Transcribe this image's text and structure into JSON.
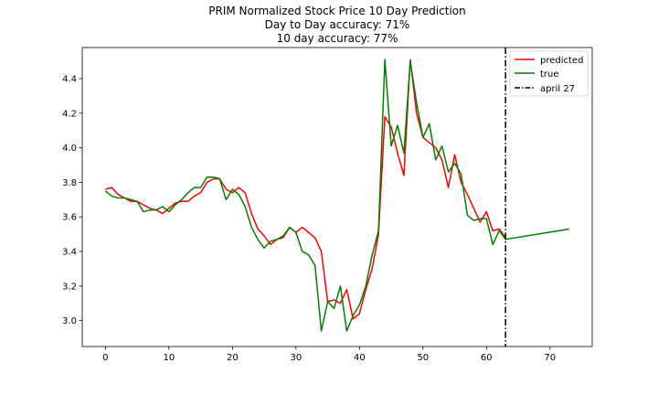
{
  "chart_data": {
    "type": "line",
    "title_lines": [
      "PRIM Normalized Stock Price 10 Day Prediction",
      "Day to Day accuracy: 71%",
      "10 day accuracy: 77%"
    ],
    "xlabel": "",
    "ylabel": "",
    "xlim": [
      -3.65,
      76.65
    ],
    "ylim": [
      2.85,
      4.58
    ],
    "x_ticks": [
      0,
      10,
      20,
      30,
      40,
      50,
      60,
      70
    ],
    "y_ticks": [
      3.0,
      3.2,
      3.4,
      3.6,
      3.8,
      4.0,
      4.2,
      4.4
    ],
    "y_tick_labels": [
      "3.0",
      "3.2",
      "3.4",
      "3.6",
      "3.8",
      "4.0",
      "4.2",
      "4.4"
    ],
    "grid": false,
    "legend_position": "top-right",
    "series": [
      {
        "name": "predicted",
        "color": "#ff0000",
        "x": [
          0,
          1,
          2,
          3,
          4,
          5,
          6,
          7,
          8,
          9,
          10,
          11,
          12,
          13,
          14,
          15,
          16,
          17,
          18,
          19,
          20,
          21,
          22,
          23,
          24,
          25,
          26,
          27,
          28,
          29,
          30,
          31,
          32,
          33,
          34,
          35,
          36,
          37,
          38,
          39,
          40,
          41,
          42,
          43,
          44,
          45,
          46,
          47,
          48,
          49,
          50,
          51,
          52,
          53,
          54,
          55,
          56,
          57,
          58,
          59,
          60,
          61,
          62,
          63
        ],
        "values": [
          3.76,
          3.77,
          3.73,
          3.71,
          3.69,
          3.69,
          3.67,
          3.65,
          3.64,
          3.62,
          3.65,
          3.68,
          3.69,
          3.69,
          3.72,
          3.74,
          3.8,
          3.82,
          3.82,
          3.76,
          3.74,
          3.77,
          3.74,
          3.62,
          3.53,
          3.49,
          3.44,
          3.47,
          3.48,
          3.54,
          3.51,
          3.54,
          3.51,
          3.48,
          3.4,
          3.11,
          3.12,
          3.1,
          3.18,
          3.01,
          3.04,
          3.18,
          3.3,
          3.5,
          4.18,
          4.12,
          3.97,
          3.84,
          4.51,
          4.2,
          4.06,
          4.03,
          4.0,
          3.93,
          3.77,
          3.96,
          3.8,
          3.73,
          3.65,
          3.57,
          3.63,
          3.52,
          3.53,
          3.48
        ]
      },
      {
        "name": "true",
        "color": "#008000",
        "x": [
          0,
          1,
          2,
          3,
          4,
          5,
          6,
          7,
          8,
          9,
          10,
          11,
          12,
          13,
          14,
          15,
          16,
          17,
          18,
          19,
          20,
          21,
          22,
          23,
          24,
          25,
          26,
          27,
          28,
          29,
          30,
          31,
          32,
          33,
          34,
          35,
          36,
          37,
          38,
          39,
          40,
          41,
          42,
          43,
          44,
          45,
          46,
          47,
          48,
          49,
          50,
          51,
          52,
          53,
          54,
          55,
          56,
          57,
          58,
          59,
          60,
          61,
          62,
          63,
          73
        ],
        "values": [
          3.75,
          3.72,
          3.71,
          3.71,
          3.7,
          3.69,
          3.63,
          3.64,
          3.64,
          3.66,
          3.63,
          3.67,
          3.7,
          3.74,
          3.77,
          3.77,
          3.83,
          3.83,
          3.82,
          3.7,
          3.76,
          3.73,
          3.66,
          3.54,
          3.47,
          3.42,
          3.46,
          3.47,
          3.49,
          3.54,
          3.51,
          3.4,
          3.38,
          3.32,
          2.94,
          3.11,
          3.07,
          3.2,
          2.94,
          3.03,
          3.09,
          3.2,
          3.38,
          3.52,
          4.51,
          4.01,
          4.13,
          3.97,
          4.5,
          4.26,
          4.06,
          4.14,
          3.93,
          4.01,
          3.86,
          3.91,
          3.85,
          3.61,
          3.58,
          3.59,
          3.59,
          3.44,
          3.52,
          3.47,
          3.53
        ]
      }
    ],
    "vline": {
      "x": 63,
      "name": "april 27",
      "color": "#000000"
    }
  }
}
